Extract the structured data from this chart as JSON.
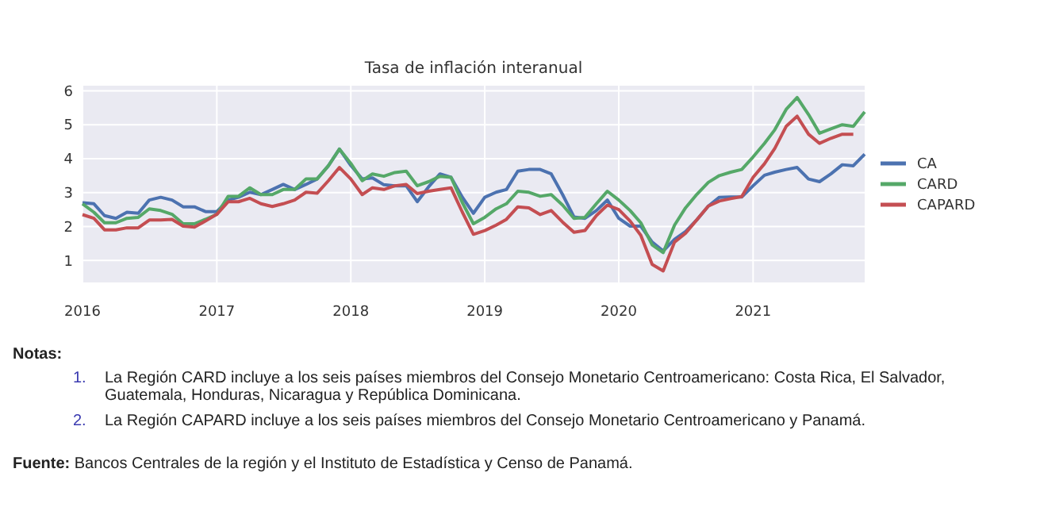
{
  "chart_data": {
    "type": "line",
    "title": "Tasa de inflación interanual",
    "x": [
      "2016-01",
      "2016-02",
      "2016-03",
      "2016-04",
      "2016-05",
      "2016-06",
      "2016-07",
      "2016-08",
      "2016-09",
      "2016-10",
      "2016-11",
      "2016-12",
      "2017-01",
      "2017-02",
      "2017-03",
      "2017-04",
      "2017-05",
      "2017-06",
      "2017-07",
      "2017-08",
      "2017-09",
      "2017-10",
      "2017-11",
      "2017-12",
      "2018-01",
      "2018-02",
      "2018-03",
      "2018-04",
      "2018-05",
      "2018-06",
      "2018-07",
      "2018-08",
      "2018-09",
      "2018-10",
      "2018-11",
      "2018-12",
      "2019-01",
      "2019-02",
      "2019-03",
      "2019-04",
      "2019-05",
      "2019-06",
      "2019-07",
      "2019-08",
      "2019-09",
      "2019-10",
      "2019-11",
      "2019-12",
      "2020-01",
      "2020-02",
      "2020-03",
      "2020-04",
      "2020-05",
      "2020-06",
      "2020-07",
      "2020-08",
      "2020-09",
      "2020-10",
      "2020-11",
      "2020-12",
      "2021-01",
      "2021-02",
      "2021-03",
      "2021-04",
      "2021-05",
      "2021-06",
      "2021-07",
      "2021-08",
      "2021-09",
      "2021-10",
      "2021-11"
    ],
    "series": [
      {
        "name": "CA",
        "color": "#4c72b0",
        "values": [
          2.7,
          2.67,
          2.32,
          2.24,
          2.42,
          2.39,
          2.78,
          2.86,
          2.78,
          2.58,
          2.58,
          2.44,
          2.44,
          2.78,
          2.86,
          3.01,
          2.94,
          3.09,
          3.24,
          3.09,
          3.24,
          3.4,
          3.79,
          4.28,
          3.8,
          3.4,
          3.43,
          3.23,
          3.2,
          3.2,
          2.73,
          3.17,
          3.55,
          3.45,
          2.86,
          2.39,
          2.86,
          3.01,
          3.09,
          3.63,
          3.68,
          3.68,
          3.55,
          2.94,
          2.28,
          2.24,
          2.47,
          2.78,
          2.24,
          2.01,
          2.01,
          1.54,
          1.28,
          1.62,
          1.85,
          2.2,
          2.6,
          2.86,
          2.87,
          2.87,
          3.2,
          3.51,
          3.6,
          3.68,
          3.74,
          3.4,
          3.32,
          3.55,
          3.82,
          3.79,
          4.13
        ]
      },
      {
        "name": "CARD",
        "color": "#55a868",
        "values": [
          2.67,
          2.42,
          2.11,
          2.11,
          2.24,
          2.27,
          2.52,
          2.47,
          2.36,
          2.08,
          2.08,
          2.21,
          2.36,
          2.89,
          2.89,
          3.14,
          2.94,
          2.94,
          3.09,
          3.09,
          3.4,
          3.4,
          3.79,
          4.28,
          3.86,
          3.35,
          3.55,
          3.48,
          3.59,
          3.63,
          3.2,
          3.32,
          3.48,
          3.45,
          2.7,
          2.08,
          2.27,
          2.52,
          2.67,
          3.04,
          3.01,
          2.89,
          2.94,
          2.63,
          2.24,
          2.27,
          2.67,
          3.04,
          2.78,
          2.47,
          2.11,
          1.46,
          1.23,
          2.04,
          2.55,
          2.95,
          3.3,
          3.5,
          3.6,
          3.68,
          4.05,
          4.45,
          4.85,
          5.45,
          5.8,
          5.3,
          4.75,
          4.88,
          5.0,
          4.95,
          5.38
        ]
      },
      {
        "name": "CAPARD",
        "color": "#c44e52",
        "values": [
          2.35,
          2.24,
          1.9,
          1.9,
          1.96,
          1.96,
          2.19,
          2.19,
          2.21,
          2.01,
          1.98,
          2.16,
          2.36,
          2.73,
          2.73,
          2.83,
          2.67,
          2.59,
          2.67,
          2.78,
          3.01,
          2.98,
          3.35,
          3.74,
          3.4,
          2.94,
          3.14,
          3.09,
          3.2,
          3.24,
          2.97,
          3.04,
          3.09,
          3.14,
          2.42,
          1.77,
          1.88,
          2.04,
          2.21,
          2.58,
          2.55,
          2.35,
          2.47,
          2.13,
          1.83,
          1.88,
          2.32,
          2.63,
          2.5,
          2.16,
          1.74,
          0.88,
          0.69,
          1.54,
          1.8,
          2.2,
          2.6,
          2.75,
          2.82,
          2.88,
          3.45,
          3.85,
          4.3,
          4.95,
          5.25,
          4.72,
          4.45,
          4.6,
          4.72,
          4.72,
          null
        ]
      }
    ],
    "xlim": [
      "2016-01",
      "2021-11"
    ],
    "xticks": [
      "2016",
      "2017",
      "2018",
      "2019",
      "2020",
      "2021"
    ],
    "ylim": [
      0.35,
      6.15
    ],
    "yticks": [
      1,
      2,
      3,
      4,
      5,
      6
    ],
    "grid": true,
    "legend": "right",
    "line_style": "solid",
    "marker": "none",
    "annotations": [
      "Notas:",
      "1.",
      "La Región CARD incluye a los seis países miembros del Consejo Monetario Centroamericano: Costa Rica, El Salvador, Guatemala, Honduras, Nicaragua y República Dominicana.",
      "2.",
      "La Región CAPARD incluye a los seis países miembros del Consejo Monetario Centroamericano y Panamá.",
      "Fuente: Bancos Centrales de la región y el Instituto de Estadística y Censo de Panamá."
    ]
  }
}
